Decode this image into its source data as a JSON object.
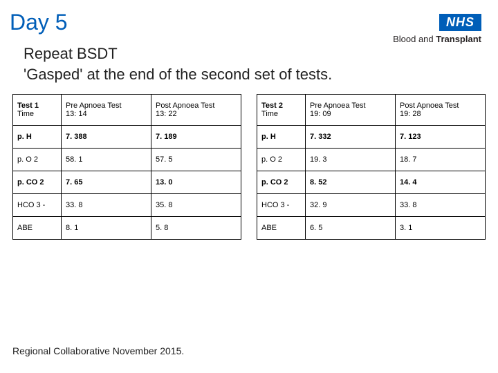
{
  "title": "Day 5",
  "logo": {
    "nhs": "NHS",
    "sub_prefix": "Blood and ",
    "sub_bold": "Transplant"
  },
  "subtitle_line1": "Repeat BSDT",
  "subtitle_line2": "'Gasped' at the end of the second set of tests.",
  "table1": {
    "header": {
      "c0a": "Test 1",
      "c0b": "Time",
      "c1a": "Pre Apnoea Test",
      "c1b": "13: 14",
      "c2a": "Post Apnoea Test",
      "c2b": "13: 22"
    },
    "rows": [
      {
        "label": "p. H",
        "pre": "7. 388",
        "post": "7. 189",
        "bold": true
      },
      {
        "label": "p. O 2",
        "pre": "58. 1",
        "post": "57. 5",
        "bold": false
      },
      {
        "label": "p. CO 2",
        "pre": "7. 65",
        "post": "13. 0",
        "bold": true
      },
      {
        "label": "HCO 3 -",
        "pre": "33. 8",
        "post": "35. 8",
        "bold": false
      },
      {
        "label": "ABE",
        "pre": "8. 1",
        "post": "5. 8",
        "bold": false
      }
    ]
  },
  "table2": {
    "header": {
      "c0a": "Test 2",
      "c0b": "Time",
      "c1a": "Pre Apnoea Test",
      "c1b": "19: 09",
      "c2a": "Post Apnoea Test",
      "c2b": "19: 28"
    },
    "rows": [
      {
        "label": "p. H",
        "pre": "7. 332",
        "post": "7. 123",
        "bold": true
      },
      {
        "label": "p. O 2",
        "pre": "19. 3",
        "post": "18. 7",
        "bold": false
      },
      {
        "label": "p. CO 2",
        "pre": "8. 52",
        "post": "14. 4",
        "bold": true
      },
      {
        "label": "HCO 3 -",
        "pre": "32. 9",
        "post": "33. 8",
        "bold": false
      },
      {
        "label": "ABE",
        "pre": "6. 5",
        "post": "3. 1",
        "bold": false
      }
    ]
  },
  "footer": "Regional Collaborative November 2015."
}
